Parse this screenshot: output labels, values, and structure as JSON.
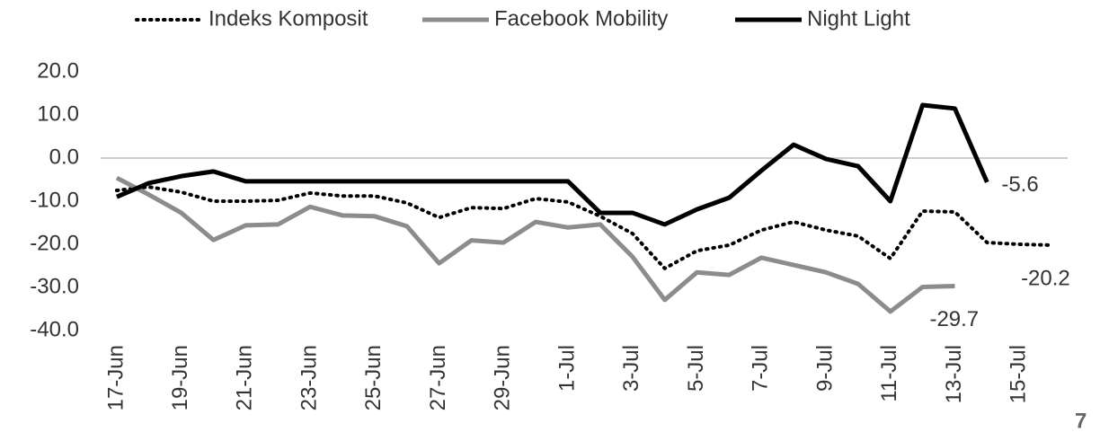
{
  "chart_data": {
    "type": "line",
    "categories": [
      "17-Jun",
      null,
      "19-Jun",
      null,
      "21-Jun",
      null,
      "23-Jun",
      null,
      "25-Jun",
      null,
      "27-Jun",
      null,
      "29-Jun",
      null,
      "1-Jul",
      null,
      "3-Jul",
      null,
      "5-Jul",
      null,
      "7-Jul",
      null,
      "9-Jul",
      null,
      "11-Jul",
      null,
      "13-Jul",
      null,
      "15-Jul",
      null
    ],
    "series": [
      {
        "name": "Indeks Komposit",
        "color": "#000000",
        "dash": "dotted",
        "values": [
          -7.5,
          -6.7,
          -7.9,
          -10.0,
          -10.0,
          -9.8,
          -8.1,
          -8.8,
          -8.8,
          -10.4,
          -13.8,
          -11.5,
          -11.7,
          -9.4,
          -10.2,
          -13.5,
          -17.5,
          -25.6,
          -21.5,
          -20.2,
          -16.7,
          -14.8,
          -16.7,
          -18.1,
          -23.3,
          -12.3,
          -12.5,
          -19.6,
          -20.0,
          -20.2
        ]
      },
      {
        "name": "Facebook Mobility",
        "color": "#8c8c8c",
        "dash": "solid",
        "values": [
          -4.6,
          -8.5,
          -12.7,
          -19.0,
          -15.6,
          -15.4,
          -11.3,
          -13.3,
          -13.5,
          -15.8,
          -24.4,
          -19.1,
          -19.6,
          -14.8,
          -16.1,
          -15.4,
          -22.9,
          -32.9,
          -26.5,
          -27.1,
          -23.1,
          -24.8,
          -26.5,
          -29.2,
          -35.6,
          -29.9,
          -29.7,
          null,
          null,
          null
        ]
      },
      {
        "name": "Night Light",
        "color": "#000000",
        "dash": "solid",
        "values": [
          -9.0,
          -5.8,
          -4.2,
          -3.1,
          -5.4,
          -5.4,
          -5.4,
          -5.4,
          -5.4,
          -5.4,
          -5.4,
          -5.4,
          -5.4,
          -5.4,
          -5.4,
          -12.7,
          -12.7,
          -15.4,
          -11.9,
          -9.2,
          -2.9,
          3.1,
          -0.2,
          -1.9,
          -10.0,
          12.3,
          11.5,
          -5.6,
          null,
          null
        ]
      }
    ],
    "ylim": [
      -40,
      20
    ],
    "yticks": [
      {
        "value": -40,
        "label": "-40.0"
      },
      {
        "value": -30,
        "label": "-30.0"
      },
      {
        "value": -20,
        "label": "-20.0"
      },
      {
        "value": -10,
        "label": "-10.0"
      },
      {
        "value": 0,
        "label": "0.0"
      },
      {
        "value": 10,
        "label": "10.0"
      },
      {
        "value": 20,
        "label": "20.0"
      }
    ],
    "grid": false,
    "legend": "top",
    "annotation": "7"
  }
}
